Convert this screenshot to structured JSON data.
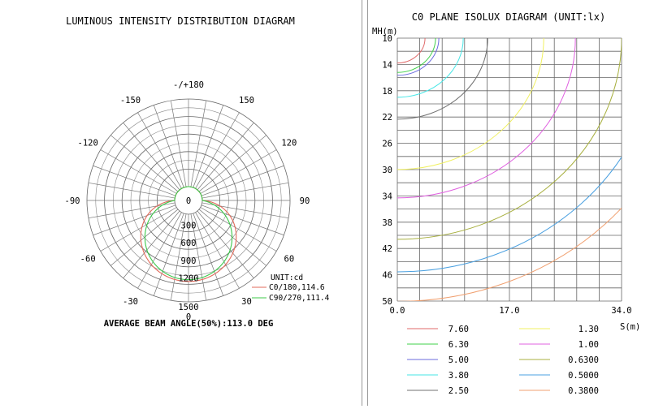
{
  "polar": {
    "title": "LUMINOUS INTENSITY DISTRIBUTION DIAGRAM",
    "angle_labels": [
      {
        "angle": 180,
        "text": "-/+180"
      },
      {
        "angle": 150,
        "text": "150"
      },
      {
        "angle": 120,
        "text": "120"
      },
      {
        "angle": 90,
        "text": "90"
      },
      {
        "angle": 60,
        "text": "60"
      },
      {
        "angle": 30,
        "text": "30"
      },
      {
        "angle": 0,
        "text": "0"
      },
      {
        "angle": -30,
        "text": "-30"
      },
      {
        "angle": -60,
        "text": "-60"
      },
      {
        "angle": -90,
        "text": "-90"
      },
      {
        "angle": -120,
        "text": "-120"
      },
      {
        "angle": -150,
        "text": "-150"
      }
    ],
    "radial_ticks": [
      "0",
      "300",
      "600",
      "900",
      "1200",
      "1500"
    ],
    "unit": "UNIT:cd",
    "legend": [
      {
        "label": "C0/180,114.6",
        "color": "#e26a5a"
      },
      {
        "label": "C90/270,111.4",
        "color": "#3cc84a"
      }
    ],
    "beam_angle": "AVERAGE BEAM ANGLE(50%):113.0 DEG"
  },
  "chart_data": {
    "type": "isolux",
    "title": "C0 PLANE ISOLUX DIAGRAM (UNIT:lx)",
    "ylabel": "MH(m)",
    "xlabel": "S(m)",
    "y_ticks": [
      "10",
      "14",
      "18",
      "22",
      "26",
      "30",
      "34",
      "38",
      "42",
      "46",
      "50"
    ],
    "x_ticks": [
      "0.0",
      "17.0",
      "34.0"
    ],
    "xlim": [
      0,
      34
    ],
    "ylim": [
      10,
      50
    ],
    "contours": [
      {
        "value": "7.60",
        "color": "#e06a6a",
        "radius": 4.2
      },
      {
        "value": "6.30",
        "color": "#3fd14a",
        "radius": 5.8
      },
      {
        "value": "5.00",
        "color": "#6b6bde",
        "radius": 6.3
      },
      {
        "value": "3.80",
        "color": "#45e6e6",
        "radius": 10.0
      },
      {
        "value": "2.50",
        "color": "#707070",
        "radius": 13.7
      },
      {
        "value": "1.30",
        "color": "#f0f060",
        "radius": 22.2
      },
      {
        "value": "1.00",
        "color": "#e060e0",
        "radius": 27.0
      },
      {
        "value": "0.6300",
        "color": "#a8b040",
        "radius": 34.0
      },
      {
        "value": "0.5000",
        "color": "#4aa0e0",
        "radius": 39.5
      },
      {
        "value": "0.3800",
        "color": "#f0a070",
        "radius": 44.5
      }
    ]
  }
}
